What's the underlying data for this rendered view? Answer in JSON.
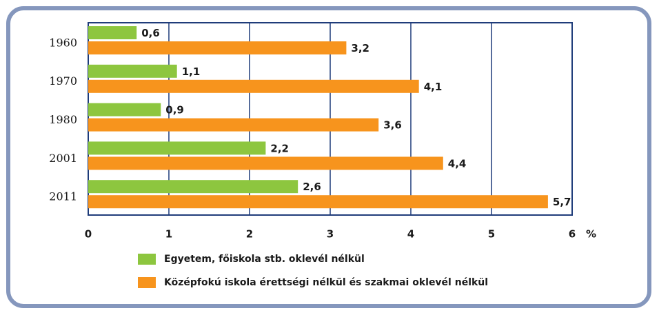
{
  "chart_data": {
    "type": "hbar",
    "categories": [
      "1960",
      "1970",
      "1980",
      "2001",
      "2011"
    ],
    "series": [
      {
        "name": "Egyetem, főiskola stb. oklevél nélkül",
        "color": "#8dc63f",
        "values": [
          0.6,
          1.1,
          0.9,
          2.2,
          2.6
        ],
        "value_labels": [
          "0,6",
          "1,1",
          "0,9",
          "2,2",
          "2,6"
        ]
      },
      {
        "name": "Középfokú iskola érettségi nélkül és szakmai oklevél nélkül",
        "color": "#f7941d",
        "values": [
          3.2,
          4.1,
          3.6,
          4.4,
          5.7
        ],
        "value_labels": [
          "3,2",
          "4,1",
          "3,6",
          "4,4",
          "5,7"
        ]
      }
    ],
    "xlim": [
      0,
      6
    ],
    "xticks": [
      0,
      1,
      2,
      3,
      4,
      5,
      6
    ],
    "xlabel": "%",
    "grid": true
  }
}
